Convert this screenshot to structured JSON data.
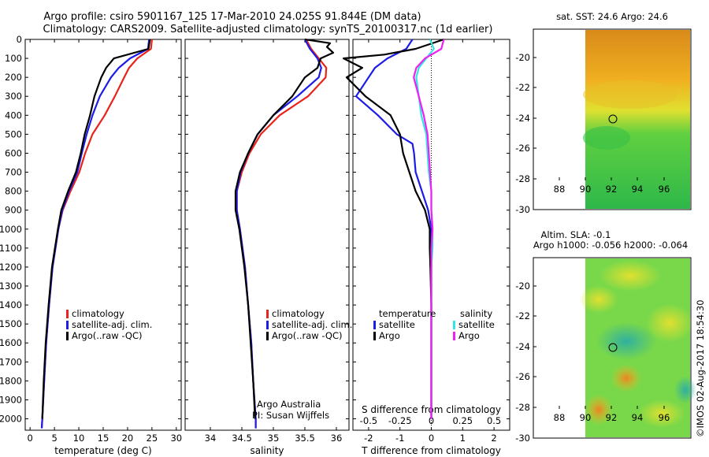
{
  "header": {
    "line1": "Argo profile: csiro 5901167_125 17-Mar-2010 24.025S 91.844E (DM data)",
    "line2": "Climatology: CARS2009. Satellite-adjusted climatology: synTS_20100317.nc (1d earlier)"
  },
  "colors": {
    "climatology": "#e8231c",
    "satellite": "#1c1ce8",
    "argo": "#000000",
    "sat_salinity": "#33e5e5",
    "argo_salinity": "#f020f0"
  },
  "depth_axis": {
    "ticks": [
      0,
      100,
      200,
      300,
      400,
      500,
      600,
      700,
      800,
      900,
      1000,
      1100,
      1200,
      1300,
      1400,
      1500,
      1600,
      1700,
      1800,
      1900,
      2000
    ],
    "ylim": [
      0,
      2060
    ]
  },
  "legend_profiles": {
    "climatology": "climatology",
    "satellite": "satellite-adj. clim.",
    "argo": "Argo(..raw -QC)"
  },
  "legend_diff": {
    "temperature_header": "temperature",
    "salinity_header": "salinity",
    "t_satellite": "satellite",
    "t_argo": "Argo",
    "s_satellite": "satellite",
    "s_argo": "Argo"
  },
  "credit": {
    "line1": "Argo Australia",
    "line2": "PI: Susan Wijffels"
  },
  "diff_labels": {
    "s_label": "S difference from climatology",
    "t_label": "T difference from climatology",
    "s_ticks": [
      "-0.5",
      "-0.25",
      "0",
      "0.25",
      "0.5"
    ],
    "t_ticks": [
      "-2",
      "-1",
      "0",
      "1",
      "2"
    ]
  },
  "maps": {
    "top_title": "sat. SST: 24.6  Argo: 24.6",
    "bottom_title1": "Altim. SLA: -0.1",
    "bottom_title2": "Argo h1000: -0.056  h2000: -0.064",
    "lat_ticks": [
      "-20",
      "-22",
      "-24",
      "-26",
      "-28",
      "-30"
    ],
    "lon_ticks": [
      "88",
      "90",
      "92",
      "94",
      "96"
    ]
  },
  "stamp": "©IMOS 02-Aug-2017 18:54:30",
  "chart_data": [
    {
      "type": "line",
      "title": "",
      "xlabel": "temperature (deg C)",
      "ylabel": "",
      "xlim": [
        -1,
        31
      ],
      "ylim": [
        0,
        2060
      ],
      "xticks": [
        0,
        5,
        10,
        15,
        20,
        25,
        30
      ],
      "series": [
        {
          "name": "climatology",
          "depth": [
            0,
            50,
            100,
            150,
            200,
            300,
            400,
            500,
            600,
            700,
            800,
            900,
            1000,
            1200,
            1400,
            1600,
            1800,
            2000,
            2050
          ],
          "values": [
            25,
            24.8,
            22,
            20.3,
            19.3,
            17.4,
            15.3,
            12.8,
            11.3,
            10.1,
            8.3,
            6.7,
            5.8,
            4.6,
            3.9,
            3.3,
            2.9,
            2.5,
            2.4
          ]
        },
        {
          "name": "satellite-adj. clim.",
          "depth": [
            0,
            50,
            100,
            150,
            200,
            300,
            400,
            500,
            600,
            700,
            800,
            900,
            1000,
            1200,
            1400,
            1600,
            1800,
            2000,
            2050
          ],
          "values": [
            24.4,
            24.2,
            20.5,
            18.2,
            16.6,
            14.3,
            12.8,
            11.6,
            10.6,
            9.7,
            8,
            6.6,
            5.8,
            4.6,
            3.9,
            3.3,
            2.9,
            2.5,
            2.4
          ]
        },
        {
          "name": "Argo(..raw -QC)",
          "depth": [
            0,
            50,
            100,
            150,
            200,
            300,
            400,
            500,
            600,
            700,
            800,
            900,
            1000,
            1200,
            1400,
            1600,
            1800,
            2000
          ],
          "values": [
            24.6,
            24.3,
            17.2,
            15.6,
            14.6,
            13.2,
            12.3,
            11.2,
            10.4,
            9.4,
            7.8,
            6.4,
            5.7,
            4.5,
            3.8,
            3.2,
            2.8,
            2.5
          ]
        }
      ]
    },
    {
      "type": "line",
      "title": "",
      "xlabel": "salinity",
      "ylabel": "",
      "xlim": [
        33.6,
        36.2
      ],
      "ylim": [
        0,
        2060
      ],
      "xticks": [
        34,
        34.5,
        35,
        35.5,
        36
      ],
      "series": [
        {
          "name": "climatology",
          "depth": [
            0,
            50,
            100,
            150,
            200,
            300,
            400,
            500,
            600,
            700,
            800,
            900,
            1000,
            1200,
            1400,
            1600,
            1800,
            2000,
            2050
          ],
          "values": [
            35.52,
            35.6,
            35.72,
            35.84,
            35.83,
            35.55,
            35.1,
            34.8,
            34.62,
            34.5,
            34.42,
            34.42,
            34.47,
            34.55,
            34.6,
            34.65,
            34.68,
            34.72,
            34.72
          ]
        },
        {
          "name": "satellite-adj. clim.",
          "depth": [
            0,
            50,
            100,
            150,
            200,
            300,
            400,
            500,
            600,
            700,
            800,
            900,
            1000,
            1200,
            1400,
            1600,
            1800,
            2000,
            2050
          ],
          "values": [
            35.5,
            35.58,
            35.7,
            35.76,
            35.72,
            35.38,
            35.0,
            34.75,
            34.6,
            34.48,
            34.42,
            34.42,
            34.47,
            34.55,
            34.6,
            34.65,
            34.68,
            34.72,
            34.72
          ]
        },
        {
          "name": "Argo(..raw -QC)",
          "depth": [
            0,
            20,
            40,
            70,
            100,
            150,
            200,
            300,
            400,
            500,
            600,
            700,
            800,
            900,
            1000,
            1200,
            1400,
            1600,
            1800,
            2000
          ],
          "values": [
            35.5,
            35.9,
            35.85,
            35.95,
            35.75,
            35.7,
            35.5,
            35.3,
            35.0,
            34.75,
            34.6,
            34.47,
            34.4,
            34.4,
            34.46,
            34.54,
            34.6,
            34.64,
            34.68,
            34.71
          ]
        }
      ]
    },
    {
      "type": "line",
      "title": "",
      "xlabel": "T difference from climatology",
      "ylabel": "",
      "xlim": [
        -2.5,
        2.5
      ],
      "ylim": [
        0,
        2060
      ],
      "xticks": [
        -2,
        -1,
        0,
        1,
        2
      ],
      "secondary_xlabel": "S difference from climatology",
      "secondary_xticks": [
        -0.5,
        -0.25,
        0,
        0.25,
        0.5
      ],
      "series": [
        {
          "name": "temperature satellite",
          "depth": [
            0,
            50,
            100,
            150,
            200,
            300,
            400,
            500,
            550,
            600,
            700,
            800,
            900,
            1000,
            1100,
            1200,
            1400,
            1600,
            1800,
            2000
          ],
          "values": [
            -0.6,
            -0.8,
            -1.4,
            -1.8,
            -2.0,
            -2.4,
            -1.7,
            -1.1,
            -0.6,
            -0.55,
            -0.5,
            -0.3,
            -0.1,
            0.0,
            0.0,
            0.0,
            0.0,
            0.0,
            0.0,
            0.0
          ]
        },
        {
          "name": "temperature Argo",
          "depth": [
            0,
            50,
            80,
            100,
            150,
            200,
            300,
            400,
            500,
            600,
            700,
            800,
            900,
            1000,
            1100,
            1200,
            1400,
            1600,
            1800,
            2000
          ],
          "values": [
            0.4,
            -0.5,
            -1.5,
            -2.8,
            -2.2,
            -2.7,
            -2.1,
            -1.3,
            -1.0,
            -0.9,
            -0.7,
            -0.5,
            -0.2,
            -0.05,
            -0.05,
            -0.03,
            0.0,
            0.0,
            0.0,
            0.0
          ]
        },
        {
          "name": "salinity satellite",
          "depth": [
            0,
            50,
            100,
            150,
            200,
            300,
            400,
            500,
            600,
            700,
            800,
            900,
            1000,
            1100,
            1200,
            1400,
            1600,
            1800,
            2000
          ],
          "values": [
            -0.01,
            0.02,
            -0.04,
            -0.1,
            -0.12,
            -0.1,
            -0.08,
            -0.04,
            -0.03,
            -0.02,
            0.0,
            0.0,
            0.01,
            0.01,
            0.0,
            0.0,
            0.0,
            0.0,
            0.0
          ]
        },
        {
          "name": "salinity Argo",
          "depth": [
            0,
            50,
            100,
            150,
            200,
            300,
            400,
            500,
            600,
            700,
            800,
            900,
            1000,
            1100,
            1200,
            1400,
            1600,
            1800,
            2000
          ],
          "values": [
            0.1,
            0.08,
            -0.05,
            -0.12,
            -0.14,
            -0.1,
            -0.06,
            -0.03,
            -0.02,
            -0.01,
            0.0,
            0.0,
            0.01,
            0.0,
            0.0,
            0.0,
            0.0,
            0.0,
            0.0
          ]
        }
      ]
    }
  ]
}
